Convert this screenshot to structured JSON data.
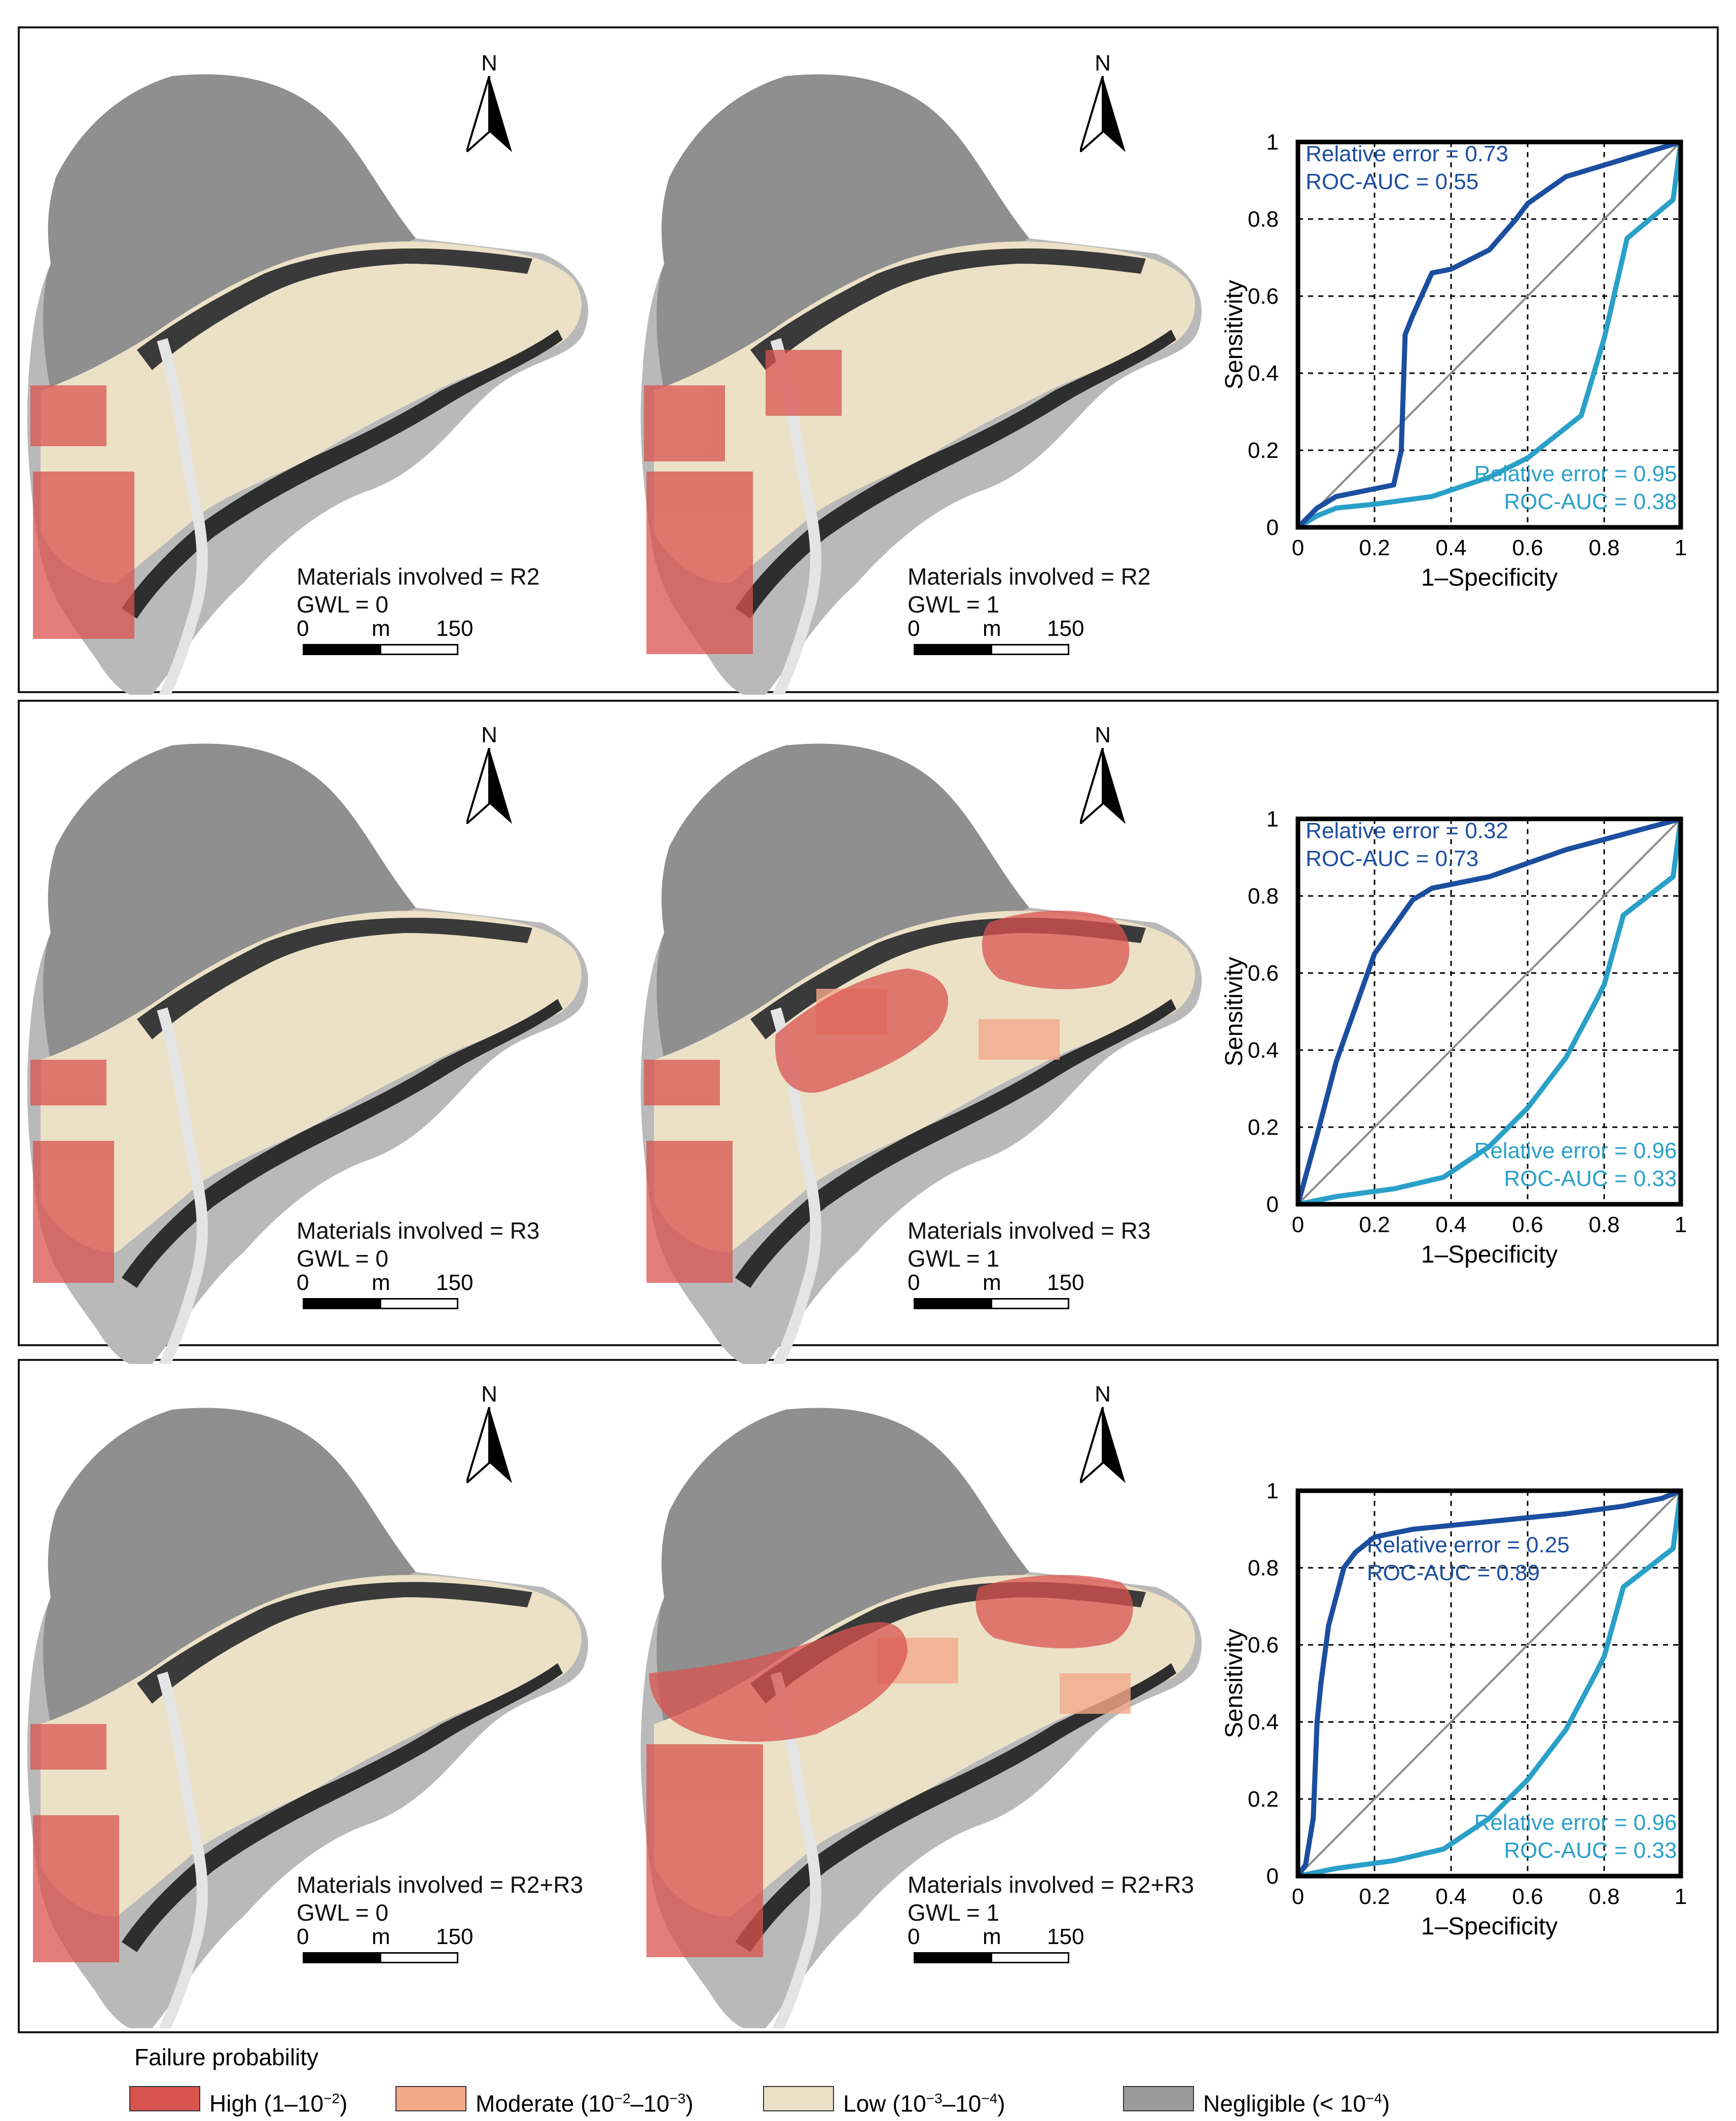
{
  "colors": {
    "high": "#d9534f",
    "moderate": "#f2a98a",
    "low": "#ece1c6",
    "negligible": "#9b9b9b",
    "curve_dark": "#1c4e9f",
    "curve_light": "#2aa0c8",
    "diagonal": "#8c8c8c"
  },
  "north_label": "N",
  "scale": {
    "zero": "0",
    "unit": "m",
    "max": "150"
  },
  "maps": [
    {
      "materials": "Materials involved = R2",
      "gwl": "GWL = 0",
      "scenario": "R2-GWL0"
    },
    {
      "materials": "Materials involved = R2",
      "gwl": "GWL = 1",
      "scenario": "R2-GWL1"
    },
    {
      "materials": "Materials involved = R3",
      "gwl": "GWL = 0",
      "scenario": "R3-GWL0"
    },
    {
      "materials": "Materials involved = R3",
      "gwl": "GWL = 1",
      "scenario": "R3-GWL1"
    },
    {
      "materials": "Materials involved = R2+R3",
      "gwl": "GWL = 0",
      "scenario": "R2R3-GWL0"
    },
    {
      "materials": "Materials involved = R2+R3",
      "gwl": "GWL = 1",
      "scenario": "R2R3-GWL1"
    }
  ],
  "chart_data": [
    {
      "type": "line",
      "xlabel": "1–Specificity",
      "ylabel": "Sensitivity",
      "xlim": [
        0,
        1
      ],
      "ylim": [
        0,
        1
      ],
      "xticks": [
        "0",
        "0.2",
        "0.4",
        "0.6",
        "0.8",
        "1"
      ],
      "yticks": [
        "0",
        "0.2",
        "0.4",
        "0.6",
        "0.8",
        "1"
      ],
      "grid": true,
      "series": [
        {
          "name": "GWL = 0",
          "annotation": [
            "Relative error = 0.95",
            "ROC-AUC = 0.38"
          ],
          "x": [
            0,
            0.05,
            0.1,
            0.2,
            0.35,
            0.5,
            0.6,
            0.74,
            0.8,
            0.86,
            0.98,
            1
          ],
          "y": [
            0,
            0.03,
            0.05,
            0.06,
            0.08,
            0.13,
            0.18,
            0.29,
            0.49,
            0.75,
            0.85,
            1
          ]
        },
        {
          "name": "GWL = 1",
          "annotation": [
            "Relative error = 0.73",
            "ROC-AUC = 0.55"
          ],
          "x": [
            0,
            0.05,
            0.1,
            0.2,
            0.25,
            0.27,
            0.28,
            0.3,
            0.35,
            0.4,
            0.5,
            0.57,
            0.6,
            0.7,
            0.8,
            1
          ],
          "y": [
            0,
            0.05,
            0.08,
            0.1,
            0.11,
            0.2,
            0.5,
            0.55,
            0.66,
            0.67,
            0.72,
            0.8,
            0.84,
            0.91,
            0.94,
            1
          ]
        }
      ]
    },
    {
      "type": "line",
      "xlabel": "1–Specificity",
      "ylabel": "Sensitivity",
      "xlim": [
        0,
        1
      ],
      "ylim": [
        0,
        1
      ],
      "xticks": [
        "0",
        "0.2",
        "0.4",
        "0.6",
        "0.8",
        "1"
      ],
      "yticks": [
        "0",
        "0.2",
        "0.4",
        "0.6",
        "0.8",
        "1"
      ],
      "grid": true,
      "series": [
        {
          "name": "GWL = 0",
          "annotation": [
            "Relative error = 0.96",
            "ROC-AUC = 0.33"
          ],
          "x": [
            0,
            0.1,
            0.25,
            0.38,
            0.5,
            0.6,
            0.7,
            0.78,
            0.8,
            0.85,
            0.98,
            1
          ],
          "y": [
            0,
            0.02,
            0.04,
            0.07,
            0.15,
            0.25,
            0.38,
            0.53,
            0.57,
            0.75,
            0.85,
            1
          ]
        },
        {
          "name": "GWL = 1",
          "annotation": [
            "Relative error = 0.32",
            "ROC-AUC = 0.73"
          ],
          "x": [
            0,
            0.05,
            0.1,
            0.2,
            0.3,
            0.35,
            0.5,
            0.7,
            1
          ],
          "y": [
            0,
            0.18,
            0.37,
            0.65,
            0.79,
            0.82,
            0.85,
            0.92,
            1
          ]
        }
      ]
    },
    {
      "type": "line",
      "xlabel": "1–Specificity",
      "ylabel": "Sensitivity",
      "xlim": [
        0,
        1
      ],
      "ylim": [
        0,
        1
      ],
      "xticks": [
        "0",
        "0.2",
        "0.4",
        "0.6",
        "0.8",
        "1"
      ],
      "yticks": [
        "0",
        "0.2",
        "0.4",
        "0.6",
        "0.8",
        "1"
      ],
      "grid": true,
      "series": [
        {
          "name": "GWL = 0",
          "annotation": [
            "Relative error = 0.96",
            "ROC-AUC = 0.33"
          ],
          "x": [
            0,
            0.1,
            0.25,
            0.38,
            0.5,
            0.6,
            0.7,
            0.78,
            0.8,
            0.85,
            0.98,
            1
          ],
          "y": [
            0,
            0.02,
            0.04,
            0.07,
            0.15,
            0.25,
            0.38,
            0.53,
            0.57,
            0.75,
            0.85,
            1
          ]
        },
        {
          "name": "GWL = 1",
          "annotation": [
            "Relative error = 0.25",
            "ROC-AUC = 0.89"
          ],
          "x": [
            0,
            0.02,
            0.04,
            0.05,
            0.06,
            0.08,
            0.12,
            0.15,
            0.2,
            0.3,
            0.5,
            0.7,
            0.85,
            0.9,
            0.95,
            1
          ],
          "y": [
            0,
            0.03,
            0.15,
            0.4,
            0.5,
            0.65,
            0.8,
            0.84,
            0.88,
            0.9,
            0.92,
            0.94,
            0.96,
            0.97,
            0.98,
            1
          ]
        }
      ]
    }
  ],
  "legend": {
    "title": "Failure probability",
    "items": [
      {
        "key": "high",
        "label": "High (1–10",
        "exp1": "−2",
        "close": ")"
      },
      {
        "key": "moderate",
        "label": "Moderate (10",
        "exp1": "−2",
        "mid": "–10",
        "exp2": "−3",
        "close": ")"
      },
      {
        "key": "low",
        "label": "Low (10",
        "exp1": "−3",
        "mid": "–10",
        "exp2": "−4",
        "close": ")"
      },
      {
        "key": "negligible",
        "label": "Negligible (< 10",
        "exp1": "−4",
        "close": ")"
      }
    ]
  }
}
